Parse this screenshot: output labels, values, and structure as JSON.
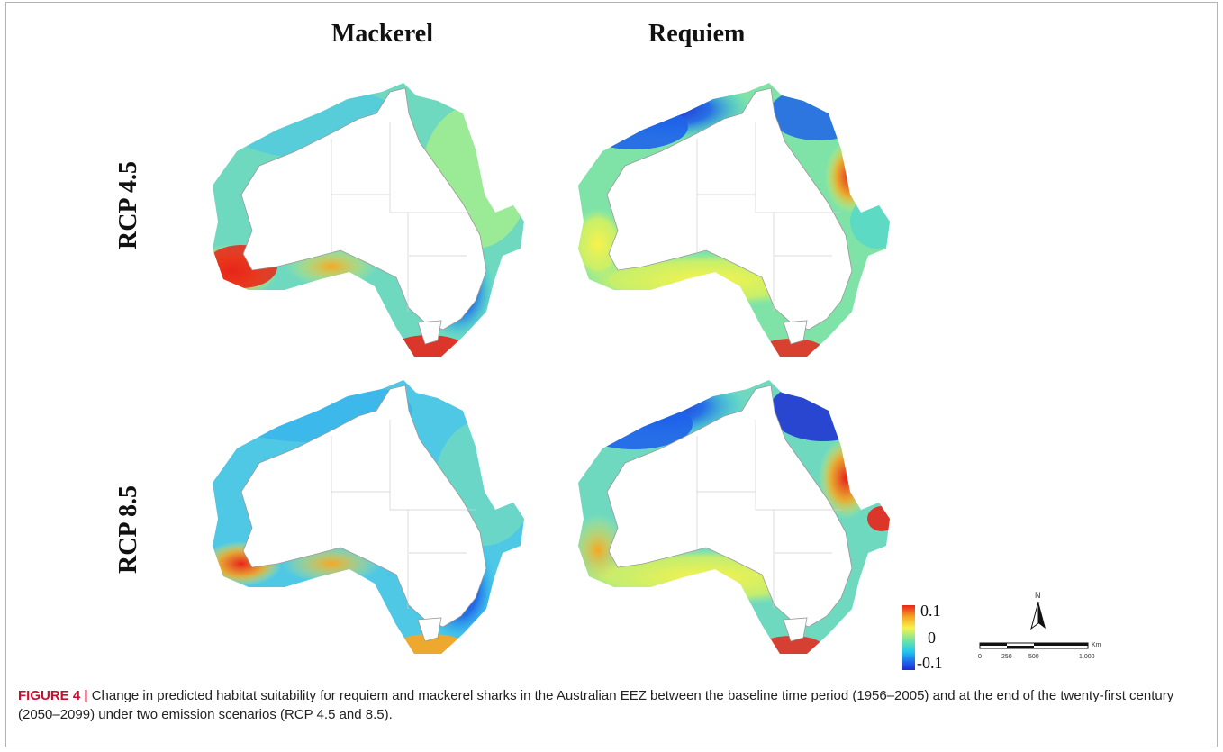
{
  "figure": {
    "column_headers": [
      "Mackerel",
      "Requiem"
    ],
    "row_headers": [
      "RCP 4.5",
      "RCP 8.5"
    ],
    "caption_label": "FIGURE 4 |",
    "caption_text": "Change in predicted habitat suitability for requiem and mackerel sharks in the Australian EEZ between the baseline time period (1956–2005) and at the end of the twenty-first century (2050–2099) under two emission scenarios (RCP 4.5 and 8.5)."
  },
  "legend": {
    "max_label": "0.1",
    "mid_label": "0",
    "min_label": "-0.1",
    "colors": [
      "#e8241a",
      "#f5a623",
      "#f8f34a",
      "#6fe3a4",
      "#1fc6f0",
      "#1f63ea",
      "#1d2bd4"
    ]
  },
  "scale_bar": {
    "north_label": "N",
    "unit_label": "Km",
    "ticks": [
      "0",
      "250",
      "500",
      "1,000"
    ]
  },
  "panels": [
    {
      "species": "Mackerel",
      "scenario": "RCP 4.5",
      "hotspots": [
        "southwest-red",
        "south-orange",
        "southeast-blue",
        "tasmania-south-red"
      ]
    },
    {
      "species": "Requiem",
      "scenario": "RCP 4.5",
      "hotspots": [
        "north-blue",
        "northeast-red",
        "south-yellow",
        "tasmania-south-red"
      ]
    },
    {
      "species": "Mackerel",
      "scenario": "RCP 8.5",
      "hotspots": [
        "southwest-red",
        "south-orange",
        "southeast-blue",
        "tasmania-south-red"
      ]
    },
    {
      "species": "Requiem",
      "scenario": "RCP 8.5",
      "hotspots": [
        "north-blue",
        "northeast-red",
        "south-yellow",
        "tasmania-south-red"
      ]
    }
  ]
}
